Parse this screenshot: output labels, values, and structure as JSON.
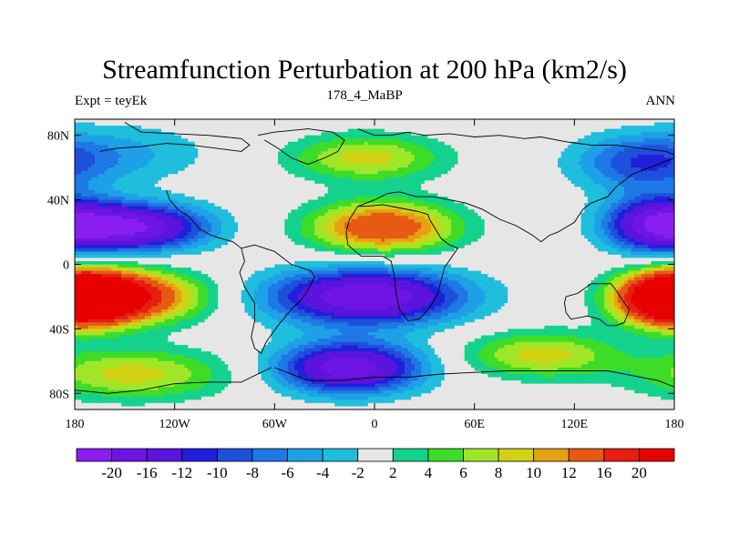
{
  "chart_data": {
    "type": "heatmap",
    "title": "Streamfunction Perturbation at 200 hPa (km2/s)",
    "left_string": "Expt = teyEk",
    "center_string": "178_4_MaBP",
    "right_string": "ANN",
    "x_range": [
      -180,
      180
    ],
    "y_range": [
      -90,
      90
    ],
    "x_ticks": [
      {
        "value": -180,
        "label": "180"
      },
      {
        "value": -120,
        "label": "120W"
      },
      {
        "value": -60,
        "label": "60W"
      },
      {
        "value": 0,
        "label": "0"
      },
      {
        "value": 60,
        "label": "60E"
      },
      {
        "value": 120,
        "label": "120E"
      },
      {
        "value": 180,
        "label": "180"
      }
    ],
    "y_ticks": [
      {
        "value": 80,
        "label": "80N"
      },
      {
        "value": 40,
        "label": "40N"
      },
      {
        "value": 0,
        "label": "0"
      },
      {
        "value": -40,
        "label": "40S"
      },
      {
        "value": -80,
        "label": "80S"
      }
    ],
    "colorbar": {
      "levels": [
        -20,
        -16,
        -12,
        -10,
        -8,
        -6,
        -4,
        -2,
        2,
        4,
        6,
        8,
        10,
        12,
        16,
        20
      ],
      "labels": [
        "-20",
        "-16",
        "-12",
        "-10",
        "-8",
        "-6",
        "-4",
        "-2",
        "2",
        "4",
        "6",
        "8",
        "10",
        "12",
        "16",
        "20"
      ],
      "colors": [
        "#8a1ef0",
        "#6e14e6",
        "#5a14dc",
        "#2020dc",
        "#1e50dc",
        "#1e78e6",
        "#1ea0e6",
        "#1ebedc",
        "#e6e6e6",
        "#14d28c",
        "#3cdc28",
        "#a0e628",
        "#d2d214",
        "#e6a014",
        "#e65a14",
        "#e61e14",
        "#e60000"
      ]
    },
    "features": [
      {
        "lon": 5,
        "lat": 23,
        "amp": 16,
        "slon": 30,
        "slat": 11
      },
      {
        "lon": -5,
        "lat": 66,
        "amp": 9,
        "slon": 32,
        "slat": 10
      },
      {
        "lon": -145,
        "lat": 23,
        "amp": -20,
        "slon": 30,
        "slat": 10
      },
      {
        "lon": -150,
        "lat": 69,
        "amp": -4,
        "slon": 38,
        "slat": 13
      },
      {
        "lon": 160,
        "lat": 63,
        "amp": -9,
        "slon": 28,
        "slat": 12
      },
      {
        "lon": 170,
        "lat": 25,
        "amp": -17,
        "slon": 22,
        "slat": 12
      },
      {
        "lon": -150,
        "lat": -20,
        "amp": 18,
        "slon": 32,
        "slat": 11
      },
      {
        "lon": -145,
        "lat": -68,
        "amp": 9,
        "slon": 40,
        "slat": 11
      },
      {
        "lon": -5,
        "lat": -20,
        "amp": -20,
        "slon": 40,
        "slat": 12
      },
      {
        "lon": -15,
        "lat": -64,
        "amp": -19,
        "slon": 30,
        "slat": 11
      },
      {
        "lon": 100,
        "lat": -56,
        "amp": 9,
        "slon": 32,
        "slat": 10
      },
      {
        "lon": 180,
        "lat": -22,
        "amp": 17,
        "slon": 22,
        "slat": 11
      },
      {
        "lon": -178,
        "lat": -20,
        "amp": 17,
        "slon": 22,
        "slat": 11
      }
    ],
    "coastline": [
      [
        [
          -150,
          88
        ],
        [
          -140,
          82
        ],
        [
          -120,
          81
        ],
        [
          -100,
          80
        ],
        [
          -90,
          79
        ],
        [
          -80,
          78
        ],
        [
          -75,
          74
        ],
        [
          -80,
          70
        ],
        [
          -95,
          72
        ],
        [
          -110,
          74
        ],
        [
          -125,
          75
        ],
        [
          -140,
          73
        ],
        [
          -155,
          72
        ],
        [
          -165,
          70
        ]
      ],
      [
        [
          -70,
          80
        ],
        [
          -60,
          82
        ],
        [
          -40,
          84
        ],
        [
          -25,
          82
        ],
        [
          -18,
          77
        ],
        [
          -22,
          70
        ],
        [
          -30,
          66
        ],
        [
          -40,
          62
        ],
        [
          -50,
          66
        ],
        [
          -58,
          72
        ],
        [
          -66,
          77
        ]
      ],
      [
        [
          -10,
          84
        ],
        [
          0,
          80
        ],
        [
          10,
          80
        ],
        [
          20,
          82
        ],
        [
          30,
          80
        ],
        [
          45,
          81
        ],
        [
          60,
          79
        ],
        [
          75,
          80
        ],
        [
          90,
          78
        ],
        [
          100,
          79
        ],
        [
          115,
          76
        ],
        [
          130,
          74
        ],
        [
          145,
          74
        ],
        [
          160,
          72
        ],
        [
          175,
          70
        ],
        [
          180,
          68
        ]
      ],
      [
        [
          -10,
          36
        ],
        [
          -5,
          38
        ],
        [
          0,
          40
        ],
        [
          8,
          44
        ],
        [
          15,
          45
        ],
        [
          25,
          42
        ],
        [
          35,
          42
        ],
        [
          45,
          40
        ],
        [
          55,
          38
        ],
        [
          65,
          34
        ],
        [
          75,
          28
        ],
        [
          85,
          24
        ],
        [
          95,
          18
        ],
        [
          100,
          14
        ],
        [
          105,
          18
        ],
        [
          110,
          20
        ],
        [
          120,
          26
        ],
        [
          125,
          34
        ],
        [
          130,
          38
        ],
        [
          140,
          42
        ],
        [
          145,
          48
        ],
        [
          155,
          56
        ],
        [
          165,
          60
        ],
        [
          175,
          64
        ],
        [
          180,
          66
        ]
      ],
      [
        [
          -10,
          36
        ],
        [
          -15,
          28
        ],
        [
          -17,
          20
        ],
        [
          -16,
          12
        ],
        [
          -8,
          5
        ],
        [
          5,
          5
        ],
        [
          10,
          2
        ],
        [
          12,
          -8
        ],
        [
          13,
          -18
        ],
        [
          15,
          -28
        ],
        [
          20,
          -35
        ],
        [
          27,
          -34
        ],
        [
          33,
          -27
        ],
        [
          38,
          -18
        ],
        [
          40,
          -10
        ],
        [
          42,
          -2
        ],
        [
          50,
          10
        ],
        [
          45,
          12
        ],
        [
          40,
          16
        ],
        [
          33,
          28
        ],
        [
          32,
          31
        ],
        [
          25,
          33
        ],
        [
          15,
          35
        ],
        [
          5,
          37
        ],
        [
          -5,
          36
        ],
        [
          -10,
          36
        ]
      ],
      [
        [
          -80,
          10
        ],
        [
          -78,
          2
        ],
        [
          -81,
          -5
        ],
        [
          -78,
          -14
        ],
        [
          -72,
          -24
        ],
        [
          -72,
          -35
        ],
        [
          -74,
          -45
        ],
        [
          -72,
          -52
        ],
        [
          -68,
          -55
        ],
        [
          -65,
          -48
        ],
        [
          -58,
          -38
        ],
        [
          -50,
          -28
        ],
        [
          -44,
          -22
        ],
        [
          -40,
          -16
        ],
        [
          -36,
          -8
        ],
        [
          -38,
          -4
        ],
        [
          -50,
          0
        ],
        [
          -60,
          8
        ],
        [
          -72,
          12
        ],
        [
          -80,
          10
        ]
      ],
      [
        [
          -80,
          10
        ],
        [
          -85,
          14
        ],
        [
          -92,
          16
        ],
        [
          -98,
          18
        ],
        [
          -105,
          22
        ],
        [
          -112,
          30
        ],
        [
          -118,
          34
        ],
        [
          -123,
          40
        ],
        [
          -125,
          46
        ]
      ],
      [
        [
          115,
          -20
        ],
        [
          122,
          -18
        ],
        [
          130,
          -12
        ],
        [
          137,
          -12
        ],
        [
          142,
          -12
        ],
        [
          145,
          -16
        ],
        [
          150,
          -24
        ],
        [
          153,
          -28
        ],
        [
          150,
          -36
        ],
        [
          145,
          -38
        ],
        [
          140,
          -38
        ],
        [
          135,
          -34
        ],
        [
          128,
          -32
        ],
        [
          118,
          -34
        ],
        [
          115,
          -30
        ],
        [
          114,
          -24
        ],
        [
          115,
          -20
        ]
      ],
      [
        [
          -60,
          -64
        ],
        [
          -40,
          -72
        ],
        [
          -20,
          -72
        ],
        [
          0,
          -70
        ],
        [
          20,
          -70
        ],
        [
          40,
          -68
        ],
        [
          60,
          -67
        ],
        [
          80,
          -66
        ],
        [
          100,
          -66
        ],
        [
          120,
          -66
        ],
        [
          140,
          -66
        ],
        [
          160,
          -70
        ],
        [
          170,
          -72
        ],
        [
          180,
          -76
        ]
      ],
      [
        [
          -180,
          -78
        ],
        [
          -160,
          -80
        ],
        [
          -140,
          -78
        ],
        [
          -120,
          -74
        ],
        [
          -100,
          -73
        ],
        [
          -80,
          -73
        ],
        [
          -70,
          -68
        ],
        [
          -62,
          -64
        ]
      ]
    ]
  }
}
